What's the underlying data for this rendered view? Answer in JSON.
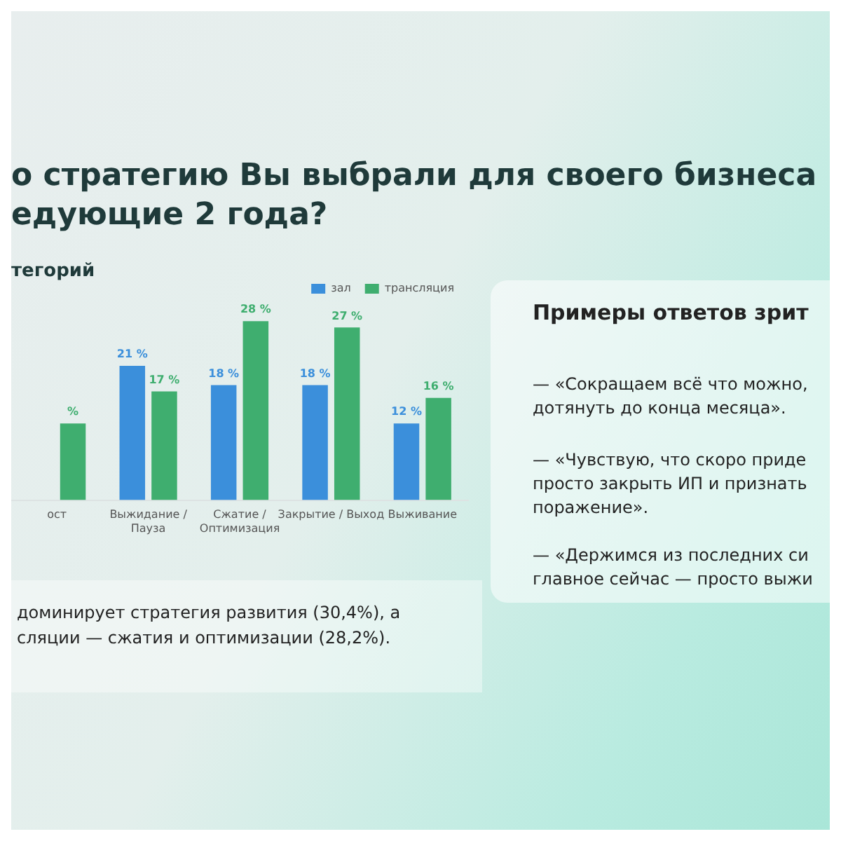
{
  "chart_data": {
    "type": "bar",
    "title": "о стратегию Вы выбрали для своего бизнеса\nедующие 2 года?",
    "subtitle": "тегорий",
    "categories": [
      "ост",
      "Выжидание /\nПауза",
      "Сжатие /\nОптимизация",
      "Закрытие / Выход",
      "Выживание"
    ],
    "series": [
      {
        "name": "зал",
        "color": "#3b8fdb",
        "values": [
          null,
          21,
          18,
          18,
          12
        ],
        "value_labels": [
          null,
          "21 %",
          "18 %",
          "18 %",
          "12 %"
        ]
      },
      {
        "name": "трансляция",
        "color": "#3fae6f",
        "values": [
          12,
          17,
          28,
          27,
          16
        ],
        "value_labels": [
          "%",
          "17 %",
          "28 %",
          "27 %",
          "16 %"
        ]
      }
    ],
    "legend": "top right",
    "tick_labels": "x",
    "grid": false,
    "annotations": [
      "Примеры ответов зрит",
      "— «Сокращаем всё что можно,\nдотянуть до конца месяца».",
      "— «Чувствую, что скоро приде\nпросто закрыть ИП и признать\nпоражение».",
      "— «Держимся из последних си\nглавное сейчас — просто выжи",
      "доминирует стратегия развития (30,4%), а\nсляции — сжатия и оптимизации (28,2%)."
    ]
  }
}
